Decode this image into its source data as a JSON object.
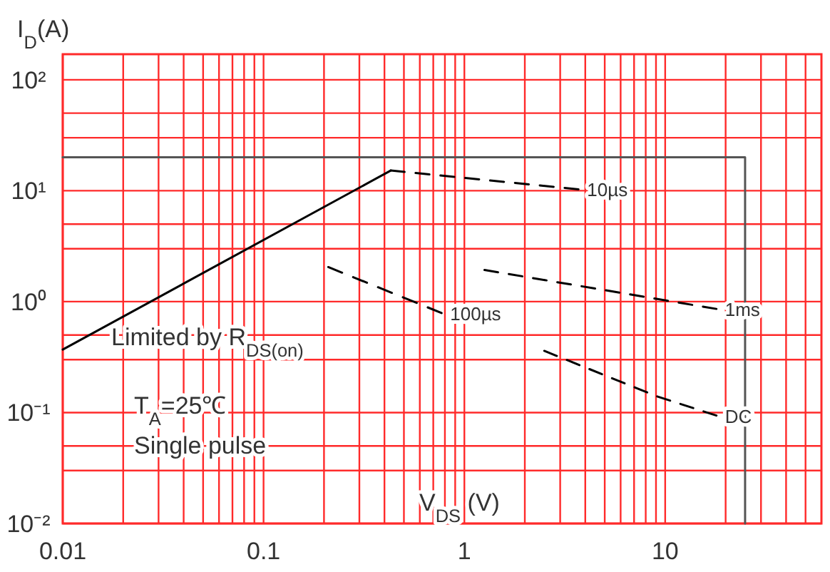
{
  "chart_data": {
    "type": "line",
    "xlabel": "V$_{DS}$ (V)",
    "ylabel": "I$_{D}$(A)",
    "log": "xy",
    "grid": true,
    "line_style": "dashed",
    "xlim": [
      0.01,
      60
    ],
    "ylim": [
      0.01,
      170
    ],
    "xticks": [
      0.01,
      {
        "value": 0.02,
        "label": null
      },
      {
        "value": 0.03,
        "label": null
      },
      {
        "value": 0.04,
        "label": null
      },
      {
        "value": 0.05,
        "label": null
      },
      {
        "value": 0.06,
        "label": null
      },
      {
        "value": 0.07,
        "label": null
      },
      {
        "value": 0.08,
        "label": null
      },
      {
        "value": 0.09,
        "label": null
      },
      0.1,
      {
        "value": 0.2,
        "label": null
      },
      {
        "value": 0.3,
        "label": null
      },
      {
        "value": 0.4,
        "label": null
      },
      {
        "value": 0.5,
        "label": null
      },
      {
        "value": 0.6,
        "label": null
      },
      {
        "value": 0.7,
        "label": null
      },
      {
        "value": 0.8,
        "label": null
      },
      {
        "value": 0.9,
        "label": null
      },
      1,
      {
        "value": 2,
        "label": null
      },
      {
        "value": 3,
        "label": null
      },
      {
        "value": 4,
        "label": null
      },
      {
        "value": 5,
        "label": null
      },
      {
        "value": 6,
        "label": null
      },
      {
        "value": 7,
        "label": null
      },
      {
        "value": 8,
        "label": null
      },
      {
        "value": 9,
        "label": null
      },
      10,
      {
        "value": 20,
        "label": null
      },
      {
        "value": 30,
        "label": null
      },
      {
        "value": 40,
        "label": null
      },
      {
        "value": 50,
        "label": null
      }
    ],
    "yticks": [
      {
        "value": 0.01,
        "label": "10⁻²"
      },
      {
        "value": 0.03,
        "label": null
      },
      {
        "value": 0.05,
        "label": null
      },
      {
        "value": 0.1,
        "label": "10⁻¹"
      },
      {
        "value": 0.3,
        "label": null
      },
      {
        "value": 0.5,
        "label": null
      },
      {
        "value": 1,
        "label": "10⁰"
      },
      {
        "value": 3,
        "label": null
      },
      {
        "value": 5,
        "label": null
      },
      {
        "value": 10,
        "label": "10¹"
      },
      {
        "value": 30,
        "label": null
      },
      {
        "value": 50,
        "label": null
      },
      {
        "value": 100,
        "label": "10²"
      }
    ],
    "series": [
      {
        "color": "#000000",
        "line_style": "solid",
        "x": [
          0.01,
          0.43
        ],
        "values": [
          0.37,
          15.2
        ]
      },
      {
        "color": "#555555",
        "line_style": "solid",
        "x": [
          0.01,
          25,
          25
        ],
        "values": [
          20,
          20,
          0.01
        ]
      },
      {
        "name": "10µs",
        "color": "#000000",
        "x": [
          0.43,
          3.7
        ],
        "values": [
          15.2,
          10.3
        ]
      },
      {
        "name": "100µs",
        "color": "#000000",
        "x": [
          0.21,
          0.77
        ],
        "values": [
          2.05,
          0.79
        ]
      },
      {
        "name": "1ms",
        "color": "#000000",
        "x": [
          1.26,
          18
        ],
        "values": [
          1.93,
          0.86
        ]
      },
      {
        "name": "DC",
        "color": "#000000",
        "x": [
          2.5,
          9.1,
          18
        ],
        "values": [
          0.36,
          0.14,
          0.094
        ]
      }
    ],
    "annotations": [
      "Limited by R$_{DS(on)}$",
      "T$_{A}$=25℃",
      "Single pulse"
    ]
  }
}
